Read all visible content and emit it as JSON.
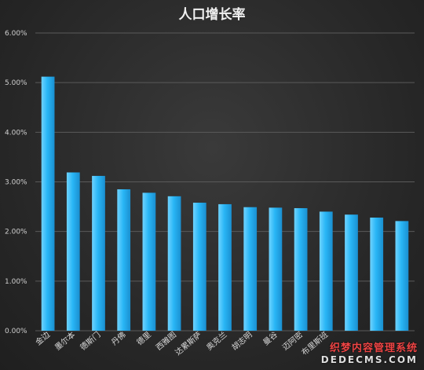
{
  "chart_data": {
    "type": "bar",
    "title": "人口增长率",
    "categories": [
      "金边",
      "墨尔本",
      "德斯门",
      "丹佛",
      "德里",
      "西雅图",
      "达累斯萨",
      "奥克兰",
      "胡志明",
      "曼谷",
      "迈阿密",
      "布里斯班",
      "",
      "",
      ""
    ],
    "values": [
      5.12,
      3.19,
      3.12,
      2.85,
      2.78,
      2.71,
      2.58,
      2.55,
      2.49,
      2.48,
      2.47,
      2.4,
      2.34,
      2.28,
      2.21
    ],
    "ylim": [
      0,
      6
    ],
    "yticks": [
      "0.00%",
      "1.00%",
      "2.00%",
      "3.00%",
      "4.00%",
      "5.00%",
      "6.00%"
    ],
    "xlabel": "",
    "ylabel": "",
    "grid": true,
    "bar_color": "#29b6f6"
  },
  "watermark": {
    "line1": "织梦内容管理系统",
    "line2": "DEDECMS.COM"
  }
}
